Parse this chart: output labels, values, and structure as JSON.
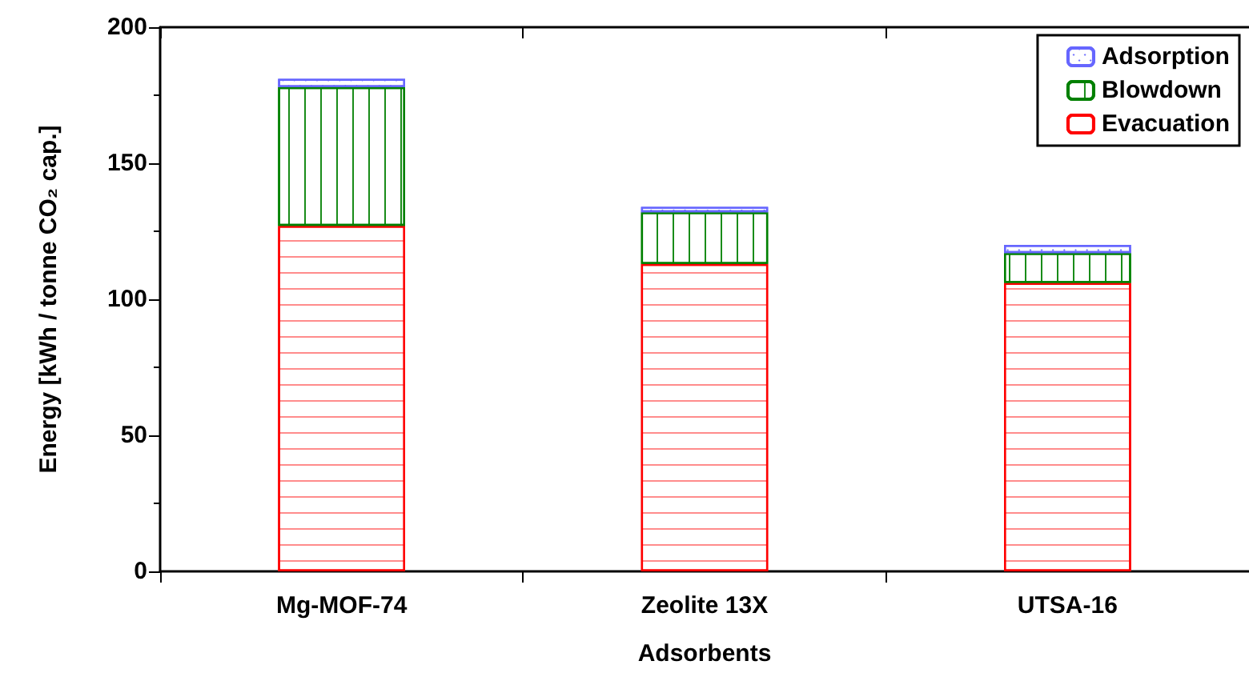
{
  "chart_data": {
    "type": "bar",
    "stacked": true,
    "xlabel": "Adsorbents",
    "ylabel": "Energy [kWh / tonne CO₂ cap.]",
    "categories": [
      "Mg-MOF-74",
      "Zeolite 13X",
      "UTSA-16"
    ],
    "series": [
      {
        "name": "Evacuation",
        "color": "#ff0000",
        "values": [
          127,
          113,
          106
        ]
      },
      {
        "name": "Blowdown",
        "color": "#008000",
        "values": [
          51,
          19,
          11
        ]
      },
      {
        "name": "Adsorption",
        "color": "#6666ff",
        "values": [
          3,
          2,
          3
        ]
      }
    ],
    "ylim": [
      0,
      200
    ],
    "yticks": [
      0,
      50,
      100,
      150,
      200
    ],
    "grid": false,
    "legend": "top right"
  }
}
